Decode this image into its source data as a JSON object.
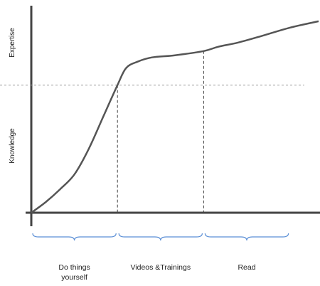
{
  "chart_data": {
    "type": "line",
    "title": "",
    "xlabel": "",
    "y_axis_labels": {
      "upper": "Expertise",
      "lower": "Knowledge"
    },
    "grid": false,
    "threshold": {
      "description": "horizontal dotted reference line",
      "y": 0.6
    },
    "xlim": [
      0,
      1
    ],
    "ylim": [
      0,
      1
    ],
    "series": [
      {
        "x": [
          0,
          0.05,
          0.1,
          0.15,
          0.2,
          0.25,
          0.3,
          0.33,
          0.37,
          0.42,
          0.5,
          0.6,
          0.65,
          0.72,
          0.8,
          0.9,
          1.0
        ],
        "y": [
          0,
          0.05,
          0.11,
          0.18,
          0.3,
          0.45,
          0.6,
          0.68,
          0.71,
          0.73,
          0.74,
          0.76,
          0.78,
          0.8,
          0.83,
          0.87,
          0.9
        ]
      }
    ],
    "phase_dividers": [
      0.3,
      0.6
    ],
    "phases": [
      {
        "label_lines": [
          "Do things",
          "yourself"
        ],
        "start": 0,
        "end": 0.3
      },
      {
        "label_lines": [
          "Videos &Trainings"
        ],
        "start": 0.3,
        "end": 0.6
      },
      {
        "label_lines": [
          "Read"
        ],
        "start": 0.6,
        "end": 0.9
      }
    ],
    "colors": {
      "curve": "#555555",
      "axes": "#444444",
      "braces": "#5b8fd6",
      "dashed": "#444444",
      "threshold": "#999999"
    }
  }
}
